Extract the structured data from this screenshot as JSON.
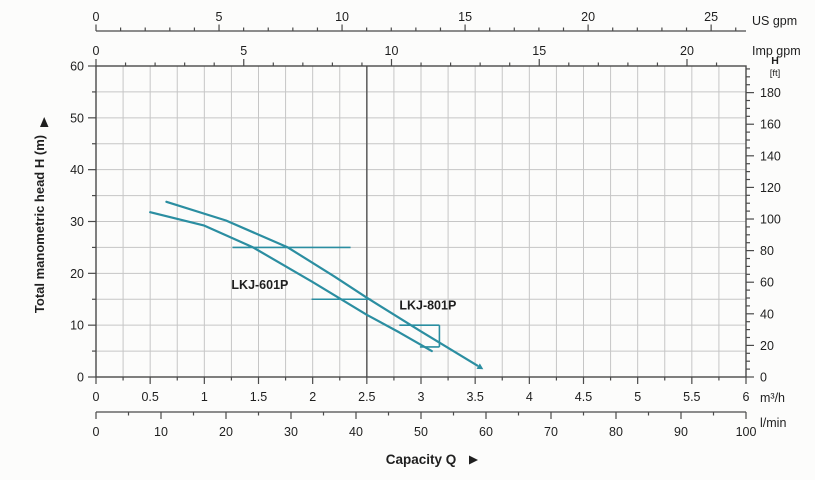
{
  "chart_data": {
    "type": "line",
    "description": "Pump performance curves: total manometric head vs capacity",
    "xlim": [
      0,
      6
    ],
    "ylim": [
      0,
      60
    ],
    "grid": {
      "x_step": 0.25,
      "y_step": 5
    },
    "reference_line_q": 2.5,
    "series": [
      {
        "name": "LKJ-601P",
        "points": [
          [
            0.5,
            31.8
          ],
          [
            1.0,
            29.2
          ],
          [
            1.45,
            25.0
          ],
          [
            2.0,
            18.3
          ],
          [
            2.5,
            12.0
          ],
          [
            2.8,
            8.6
          ],
          [
            3.1,
            5.0
          ]
        ],
        "label_q": 1.25,
        "label_h": 17.0,
        "arrow_end": false
      },
      {
        "name": "LKJ-801P",
        "points": [
          [
            0.65,
            33.8
          ],
          [
            1.2,
            30.2
          ],
          [
            1.77,
            25.0
          ],
          [
            2.2,
            19.4
          ],
          [
            2.5,
            15.3
          ],
          [
            3.0,
            8.8
          ],
          [
            3.52,
            2.2
          ]
        ],
        "label_q": 2.8,
        "label_h": 13.0,
        "arrow_end": true
      }
    ],
    "step_segments": [
      {
        "x1": 1.26,
        "y1": 25,
        "x2": 2.35,
        "y2": 25
      },
      {
        "x1": 1.99,
        "y1": 15,
        "x2": 2.54,
        "y2": 15
      },
      {
        "x1": 2.8,
        "y1": 10,
        "x2": 3.17,
        "y2": 10
      },
      {
        "x1": 3.17,
        "y1": 10,
        "x2": 3.17,
        "y2": 5.8
      },
      {
        "x1": 2.99,
        "y1": 5.8,
        "x2": 3.17,
        "y2": 5.8
      }
    ],
    "axes": {
      "x_title": "Capacity Q",
      "y_title": "Total manometric head H (m)",
      "us_gpm": {
        "label": "US gpm",
        "max": 26.417,
        "major_ticks": [
          0,
          5,
          10,
          15,
          20,
          25
        ],
        "minor_step": 1
      },
      "imp_gpm": {
        "label": "Imp gpm",
        "max": 21.997,
        "major_ticks": [
          0,
          5,
          10,
          15,
          20
        ],
        "minor_step": 1
      },
      "head_m": {
        "max": 60,
        "major_ticks": [
          0,
          10,
          20,
          30,
          40,
          50,
          60
        ],
        "minor_step": 5
      },
      "head_ft": {
        "label": "H",
        "sublabel": "[ft]",
        "max": 196.85,
        "major_ticks": [
          0,
          20,
          40,
          60,
          80,
          100,
          120,
          140,
          160,
          180
        ],
        "minor_step": 5
      },
      "m3_per_h": {
        "label": "m³/h",
        "max": 6,
        "major_ticks": [
          0,
          0.5,
          1,
          1.5,
          2,
          2.5,
          3,
          3.5,
          4,
          4.5,
          5,
          5.5,
          6
        ],
        "tick_labels": [
          "0",
          "0.5",
          "1",
          "1.5",
          "2",
          "2.5",
          "3",
          "3.5",
          "4",
          "4.5",
          "5",
          "5.5",
          "6"
        ],
        "minor_step": 0.25
      },
      "l_per_min": {
        "label": "l/min",
        "max": 100,
        "major_ticks": [
          0,
          10,
          20,
          30,
          40,
          50,
          60,
          70,
          80,
          90,
          100
        ],
        "minor_step": 5
      }
    },
    "colors": {
      "curve": "#2b8ea1",
      "grid": "#c6c6c6",
      "frame": "#4a4a4a",
      "reference": "#5a5a5a",
      "text": "#1f1f1f",
      "background": "#fcfcfb"
    }
  }
}
